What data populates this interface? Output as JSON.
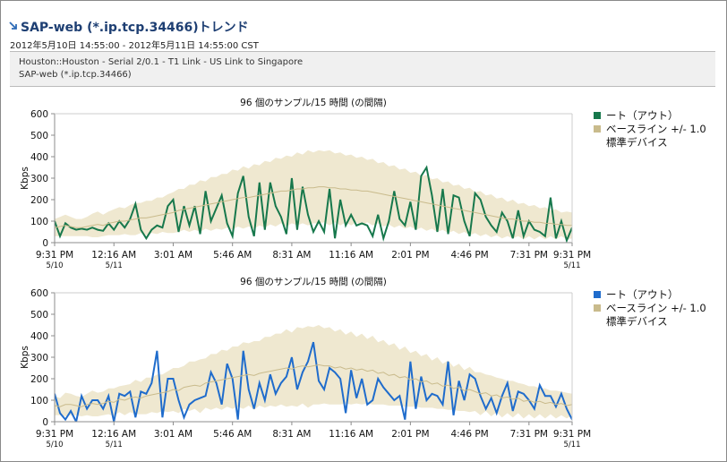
{
  "header": {
    "title": "SAP-web (*.ip.tcp.34466)トレンド",
    "range": "2012年5月10日 14:55:00 - 2012年5月11日 14:55:00 CST",
    "path": "Houston::Houston - Serial 2/0.1 - T1 Link - US Link to Singapore",
    "object": "SAP-web (*.ip.tcp.34466)"
  },
  "chart_data": [
    {
      "type": "line",
      "title": "96 個のサンプル/15 時間 (の間隔)",
      "y_label": "Kbps",
      "xlim": [
        0,
        96
      ],
      "xticks": [
        {
          "value": 0,
          "label": "9:31 PM"
        },
        {
          "value": 11,
          "label": "12:16 AM"
        },
        {
          "value": 22,
          "label": "3:01 AM"
        },
        {
          "value": 33,
          "label": "5:46 AM"
        },
        {
          "value": 44,
          "label": "8:31 AM"
        },
        {
          "value": 55,
          "label": "11:16 AM"
        },
        {
          "value": 66,
          "label": "2:01 PM"
        },
        {
          "value": 77,
          "label": "4:46 PM"
        },
        {
          "value": 88,
          "label": "7:31 PM"
        },
        {
          "value": 96,
          "label": "9:31 PM"
        }
      ],
      "xtick_dates": [
        {
          "value": 0,
          "label": "5/10"
        },
        {
          "value": 11,
          "label": "5/11"
        },
        {
          "value": 96,
          "label": "5/11"
        }
      ],
      "ylim": [
        0,
        600
      ],
      "yticks": [
        0,
        100,
        200,
        300,
        400,
        500,
        600
      ],
      "series": [
        {
          "name": "ート（アウト）",
          "color": "#17784c",
          "values": [
            100,
            30,
            90,
            70,
            60,
            65,
            60,
            70,
            60,
            55,
            90,
            60,
            100,
            70,
            110,
            180,
            60,
            20,
            60,
            80,
            70,
            170,
            200,
            50,
            170,
            80,
            170,
            40,
            240,
            100,
            160,
            220,
            90,
            30,
            230,
            310,
            120,
            30,
            280,
            60,
            280,
            170,
            120,
            40,
            300,
            60,
            260,
            130,
            50,
            100,
            50,
            250,
            20,
            200,
            80,
            130,
            80,
            90,
            80,
            30,
            130,
            20,
            100,
            240,
            110,
            80,
            190,
            60,
            310,
            350,
            220,
            50,
            250,
            40,
            220,
            210,
            100,
            30,
            230,
            200,
            120,
            80,
            50,
            140,
            100,
            20,
            150,
            30,
            100,
            60,
            50,
            30,
            210,
            20,
            100,
            10,
            70
          ]
        },
        {
          "name": "ベースライン +/- 1.0\n標準デバイス",
          "color": "#c9bb8c",
          "band_color": "#efe8d0",
          "values": [
            70,
            75,
            80,
            75,
            70,
            70,
            75,
            80,
            85,
            80,
            90,
            95,
            100,
            100,
            105,
            110,
            115,
            115,
            120,
            125,
            130,
            135,
            140,
            150,
            155,
            160,
            165,
            170,
            175,
            180,
            185,
            190,
            195,
            200,
            205,
            210,
            210,
            215,
            220,
            225,
            230,
            235,
            240,
            240,
            245,
            250,
            250,
            255,
            255,
            260,
            260,
            255,
            255,
            250,
            250,
            245,
            245,
            240,
            240,
            235,
            230,
            225,
            220,
            215,
            210,
            205,
            200,
            195,
            190,
            185,
            180,
            175,
            170,
            165,
            160,
            155,
            150,
            145,
            140,
            135,
            130,
            125,
            120,
            115,
            110,
            110,
            105,
            100,
            100,
            95,
            95,
            90,
            90,
            85,
            85,
            80,
            80
          ],
          "deviation": [
            40,
            45,
            50,
            45,
            40,
            40,
            45,
            55,
            60,
            50,
            55,
            60,
            65,
            60,
            70,
            75,
            70,
            80,
            75,
            85,
            80,
            90,
            95,
            100,
            95,
            110,
            105,
            120,
            110,
            125,
            120,
            130,
            125,
            140,
            130,
            145,
            135,
            150,
            140,
            155,
            145,
            160,
            150,
            165,
            155,
            170,
            160,
            175,
            165,
            170,
            165,
            175,
            160,
            170,
            155,
            165,
            150,
            160,
            145,
            155,
            140,
            150,
            135,
            145,
            130,
            140,
            125,
            135,
            120,
            130,
            115,
            125,
            110,
            120,
            105,
            115,
            100,
            110,
            95,
            105,
            90,
            100,
            85,
            95,
            80,
            90,
            75,
            85,
            70,
            80,
            65,
            75,
            60,
            70,
            55,
            65,
            60
          ]
        }
      ]
    },
    {
      "type": "line",
      "title": "96 個のサンプル/15 時間 (の間隔)",
      "y_label": "Kbps",
      "xlim": [
        0,
        96
      ],
      "xticks": [
        {
          "value": 0,
          "label": "9:31 PM"
        },
        {
          "value": 11,
          "label": "12:16 AM"
        },
        {
          "value": 22,
          "label": "3:01 AM"
        },
        {
          "value": 33,
          "label": "5:46 AM"
        },
        {
          "value": 44,
          "label": "8:31 AM"
        },
        {
          "value": 55,
          "label": "11:16 AM"
        },
        {
          "value": 66,
          "label": "2:01 PM"
        },
        {
          "value": 77,
          "label": "4:46 PM"
        },
        {
          "value": 88,
          "label": "7:31 PM"
        },
        {
          "value": 96,
          "label": "9:31 PM"
        }
      ],
      "xtick_dates": [
        {
          "value": 0,
          "label": "5/10"
        },
        {
          "value": 11,
          "label": "5/11"
        },
        {
          "value": 96,
          "label": "5/11"
        }
      ],
      "ylim": [
        0,
        600
      ],
      "yticks": [
        0,
        100,
        200,
        300,
        400,
        500,
        600
      ],
      "series": [
        {
          "name": "ート（アウト）",
          "color": "#1f6ccc",
          "values": [
            130,
            40,
            10,
            50,
            0,
            120,
            60,
            100,
            100,
            60,
            120,
            0,
            130,
            120,
            140,
            20,
            140,
            130,
            180,
            330,
            20,
            200,
            200,
            100,
            20,
            80,
            100,
            110,
            120,
            230,
            180,
            80,
            270,
            200,
            10,
            330,
            150,
            60,
            180,
            100,
            220,
            130,
            180,
            210,
            300,
            150,
            230,
            280,
            370,
            190,
            150,
            250,
            230,
            200,
            40,
            240,
            110,
            200,
            80,
            100,
            200,
            160,
            130,
            100,
            120,
            10,
            280,
            60,
            210,
            100,
            130,
            120,
            80,
            280,
            30,
            190,
            100,
            220,
            200,
            120,
            60,
            110,
            40,
            120,
            180,
            50,
            140,
            130,
            100,
            60,
            170,
            120,
            120,
            70,
            130,
            60,
            10
          ]
        },
        {
          "name": "ベースライン +/- 1.0\n標準デバイス",
          "color": "#c9bb8c",
          "band_color": "#efe8d0",
          "values": [
            75,
            70,
            80,
            80,
            75,
            70,
            80,
            85,
            80,
            85,
            95,
            90,
            105,
            100,
            110,
            115,
            110,
            120,
            125,
            130,
            135,
            140,
            150,
            145,
            160,
            165,
            170,
            165,
            180,
            185,
            190,
            195,
            200,
            205,
            210,
            215,
            220,
            215,
            225,
            230,
            235,
            240,
            245,
            250,
            245,
            255,
            260,
            255,
            260,
            265,
            260,
            260,
            250,
            255,
            245,
            250,
            240,
            245,
            235,
            240,
            225,
            230,
            215,
            220,
            205,
            210,
            195,
            200,
            185,
            190,
            175,
            180,
            165,
            170,
            155,
            160,
            145,
            150,
            140,
            130,
            135,
            120,
            125,
            110,
            115,
            105,
            110,
            95,
            100,
            90,
            95,
            85,
            90,
            80,
            85,
            75,
            80
          ],
          "deviation": [
            45,
            40,
            55,
            50,
            45,
            45,
            50,
            60,
            55,
            55,
            60,
            65,
            60,
            70,
            65,
            80,
            75,
            85,
            80,
            90,
            85,
            95,
            100,
            105,
            100,
            115,
            110,
            125,
            115,
            130,
            125,
            140,
            130,
            145,
            140,
            155,
            145,
            160,
            150,
            165,
            160,
            170,
            165,
            180,
            170,
            185,
            175,
            190,
            180,
            185,
            175,
            180,
            170,
            175,
            160,
            170,
            155,
            165,
            150,
            160,
            145,
            150,
            140,
            145,
            130,
            140,
            125,
            130,
            120,
            125,
            110,
            120,
            105,
            115,
            100,
            110,
            95,
            105,
            90,
            100,
            85,
            95,
            80,
            90,
            75,
            85,
            70,
            80,
            65,
            75,
            60,
            70,
            55,
            65,
            55,
            60,
            50
          ]
        }
      ]
    }
  ]
}
